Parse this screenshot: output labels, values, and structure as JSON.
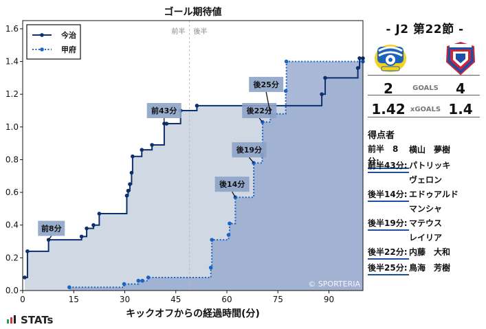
{
  "chart_data": {
    "type": "line",
    "title": "ゴール期待値",
    "xlabel": "キックオフからの経過時間(分)",
    "ylabel": "",
    "xlim": [
      0,
      100
    ],
    "ylim": [
      0,
      1.65
    ],
    "xticks": [
      0,
      15,
      30,
      45,
      60,
      75,
      90
    ],
    "yticks": [
      0.0,
      0.2,
      0.4,
      0.6,
      0.8,
      1.0,
      1.2,
      1.4,
      1.6
    ],
    "halftime_x": 49,
    "halftime_labels": [
      "前半",
      "後半"
    ],
    "legend_position": "top-left",
    "watermark": "© SPORTERIA",
    "series": [
      {
        "name": "今治",
        "style": "solid",
        "color": "#0d2f6e",
        "fill": "#d0d8e3",
        "points": [
          [
            0.6,
            0.08
          ],
          [
            1.4,
            0.24
          ],
          [
            7.6,
            0.31
          ],
          [
            17.3,
            0.33
          ],
          [
            18.8,
            0.38
          ],
          [
            20.8,
            0.4
          ],
          [
            22.5,
            0.47
          ],
          [
            30.6,
            0.58
          ],
          [
            31.0,
            0.61
          ],
          [
            31.5,
            0.65
          ],
          [
            32.0,
            0.72
          ],
          [
            32.3,
            0.82
          ],
          [
            35.0,
            0.86
          ],
          [
            38.0,
            0.89
          ],
          [
            41.6,
            1.02
          ],
          [
            42.3,
            1.02
          ],
          [
            46.4,
            1.1
          ],
          [
            51.2,
            1.13
          ],
          [
            87.9,
            1.2
          ],
          [
            88.9,
            1.3
          ],
          [
            98.5,
            1.36
          ],
          [
            99.0,
            1.42
          ],
          [
            100,
            1.42
          ]
        ]
      },
      {
        "name": "甲府",
        "style": "dotted",
        "color": "#1a63c0",
        "fill": "#9aaccf",
        "points": [
          [
            13.7,
            0.02
          ],
          [
            29.8,
            0.04
          ],
          [
            34.0,
            0.06
          ],
          [
            35.2,
            0.06
          ],
          [
            36.9,
            0.08
          ],
          [
            55.3,
            0.14
          ],
          [
            55.6,
            0.31
          ],
          [
            60.5,
            0.34
          ],
          [
            60.8,
            0.41
          ],
          [
            62.5,
            0.57
          ],
          [
            67.9,
            0.78
          ],
          [
            70.4,
            0.83
          ],
          [
            70.5,
            1.03
          ],
          [
            72.8,
            1.08
          ],
          [
            77.3,
            1.22
          ],
          [
            77.5,
            1.4
          ],
          [
            100,
            1.4
          ]
        ]
      }
    ],
    "annotations": [
      {
        "label": "前8分",
        "x": 7.6,
        "y": 0.31,
        "lx": 4.5,
        "ly": 0.38
      },
      {
        "label": "前43分",
        "x": 41.6,
        "y": 1.02,
        "lx": 36.5,
        "ly": 1.1
      },
      {
        "label": "後14分",
        "x": 62.5,
        "y": 0.57,
        "lx": 56.5,
        "ly": 0.65
      },
      {
        "label": "後19分",
        "x": 67.9,
        "y": 0.78,
        "lx": 61.5,
        "ly": 0.86
      },
      {
        "label": "後22分",
        "x": 70.4,
        "y": 1.03,
        "lx": 64.5,
        "ly": 1.1
      },
      {
        "label": "後25分",
        "x": 72.8,
        "y": 1.08,
        "lx": 66.5,
        "ly": 1.26
      }
    ]
  },
  "side": {
    "round": "- J2 第22節 -",
    "home_score": "2",
    "away_score": "4",
    "goals_label": "GOALS",
    "home_xg": "1.42",
    "away_xg": "1.4",
    "xg_label": "xGOALS",
    "scorers_title": "得点者",
    "scorers": [
      {
        "time": "前半　8分:",
        "name": "横山　夢樹"
      },
      {
        "time": "前半43分:",
        "name": "パトリッキ\nヴェロン"
      },
      {
        "time": "後半14分:",
        "name": "エドゥアルド\nマンシャ"
      },
      {
        "time": "後半19分:",
        "name": "マテウス\nレイリア"
      },
      {
        "time": "後半22分:",
        "name": "内藤　大和"
      },
      {
        "time": "後半25分:",
        "name": "鳥海　芳樹"
      }
    ],
    "home_logo": "imabari-crest",
    "away_logo": "kofu-crest"
  },
  "footer": {
    "brand": "STATs"
  }
}
